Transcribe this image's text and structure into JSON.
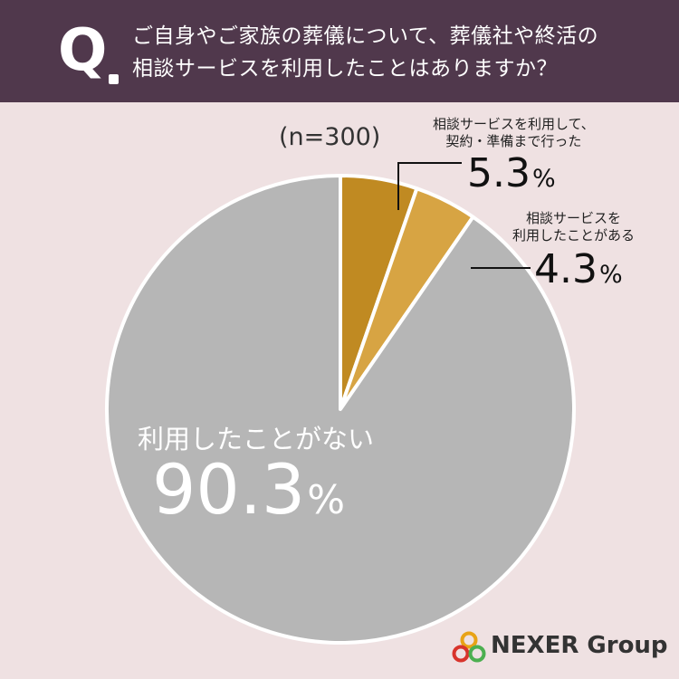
{
  "question": {
    "mark": "Q",
    "line1": "ご自身やご家族の葬儀について、葬儀社や終活の",
    "line2": "相談サービスを利用したことはありますか？"
  },
  "sample_size": "(n=300)",
  "labels": {
    "contract": {
      "line1": "相談サービスを利用して、",
      "line2": "契約・準備まで行った",
      "value": "5.3",
      "unit": "%"
    },
    "consulted": {
      "line1": "相談サービスを",
      "line2": "利用したことがある",
      "value": "4.3",
      "unit": "%"
    },
    "never": {
      "name": "利用したことがない",
      "value": "90.3",
      "unit": "%"
    }
  },
  "logo": {
    "text": "NEXER Group"
  },
  "chart_data": {
    "type": "pie",
    "categories": [
      "相談サービスを利用して、契約・準備まで行った",
      "相談サービスを利用したことがある",
      "利用したことがない"
    ],
    "values": [
      5.3,
      4.3,
      90.3
    ],
    "unit": "%",
    "sample": "(n=300)",
    "colors": [
      "#c08a22",
      "#d7a443",
      "#b6b6b6"
    ],
    "start": "12 o'clock, clockwise"
  }
}
